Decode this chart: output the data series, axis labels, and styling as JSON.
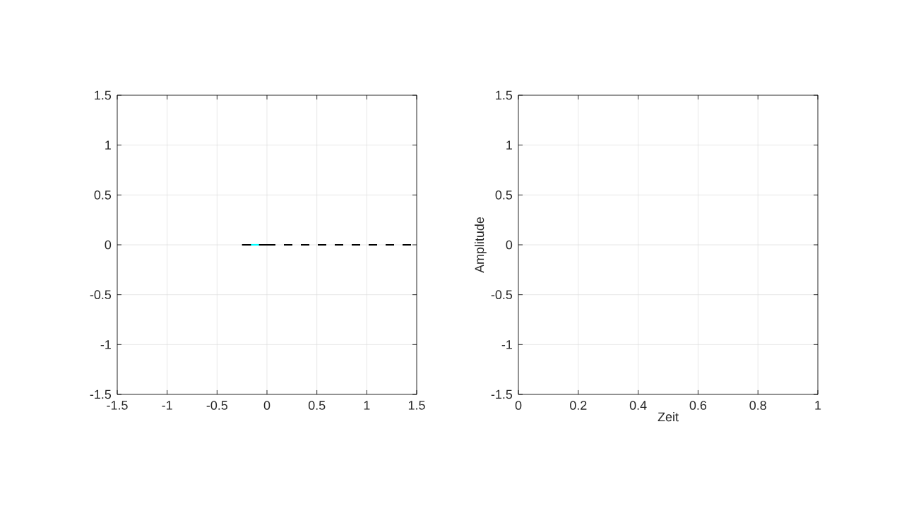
{
  "chart_data": [
    {
      "type": "line",
      "xlim": [
        -1.5,
        1.5
      ],
      "ylim": [
        -1.5,
        1.5
      ],
      "xticks": [
        -1.5,
        -1,
        -0.5,
        0,
        0.5,
        1,
        1.5
      ],
      "yticks": [
        -1.5,
        -1,
        -0.5,
        0,
        0.5,
        1,
        1.5
      ],
      "grid": true,
      "series": [
        {
          "x": [
            -0.25,
            0
          ],
          "values": [
            0,
            0
          ],
          "color": "#000000",
          "line_style": "solid"
        },
        {
          "x": [
            0,
            1.5
          ],
          "values": [
            0,
            0
          ],
          "color": "#000000",
          "line_style": "dashed"
        },
        {
          "x": [
            -0.16,
            -0.08
          ],
          "values": [
            0,
            0
          ],
          "color": "#00ffff",
          "line_style": "solid"
        }
      ]
    },
    {
      "type": "line",
      "xlim": [
        0,
        1
      ],
      "ylim": [
        -1.5,
        1.5
      ],
      "xticks": [
        0,
        0.2,
        0.4,
        0.6,
        0.8,
        1
      ],
      "yticks": [
        -1.5,
        -1,
        -0.5,
        0,
        0.5,
        1,
        1.5
      ],
      "grid": true,
      "xlabel": "Zeit",
      "ylabel": "Amplitude"
    }
  ]
}
